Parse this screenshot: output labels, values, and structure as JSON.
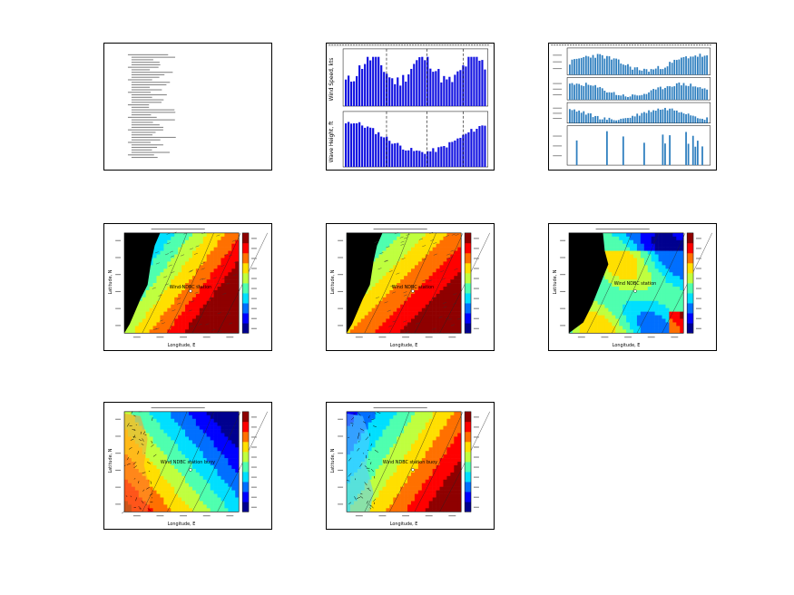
{
  "thumbnails": [
    {
      "name": "text-page"
    },
    {
      "name": "wind-wave-bars",
      "ylabels": [
        "Wind Speed, kts",
        "Wave Height, ft"
      ]
    },
    {
      "name": "multi-panel-bars"
    },
    {
      "name": "wind-map",
      "xlabel": "Longitude, E",
      "ylabel": "Latitude, N",
      "point_label": "Wind NDBC station"
    },
    {
      "name": "wave-map",
      "xlabel": "Longitude, E",
      "ylabel": "Latitude, N",
      "point_label": "Wind NDBC station"
    },
    {
      "name": "chlorophyll-map",
      "xlabel": "Longitude, E",
      "ylabel": "Latitude, N",
      "point_label": "Wind NDBC station"
    },
    {
      "name": "sst-map",
      "xlabel": "Longitude, E",
      "ylabel": "Latitude, N",
      "point_label": "Wind NDBC station buoy"
    },
    {
      "name": "current-map",
      "xlabel": "Longitude, E",
      "ylabel": "Latitude, N",
      "point_label": "Wind NDBC station buoy"
    }
  ],
  "colors": {
    "jet": [
      "#00008f",
      "#0000ff",
      "#006fff",
      "#00dfff",
      "#4fffaf",
      "#bfff3f",
      "#ffdf00",
      "#ff7000",
      "#ff0000",
      "#8f0000"
    ],
    "bar_blue": "#1010e0",
    "bar_steel": "#2f7fbf",
    "land": "#000000"
  }
}
